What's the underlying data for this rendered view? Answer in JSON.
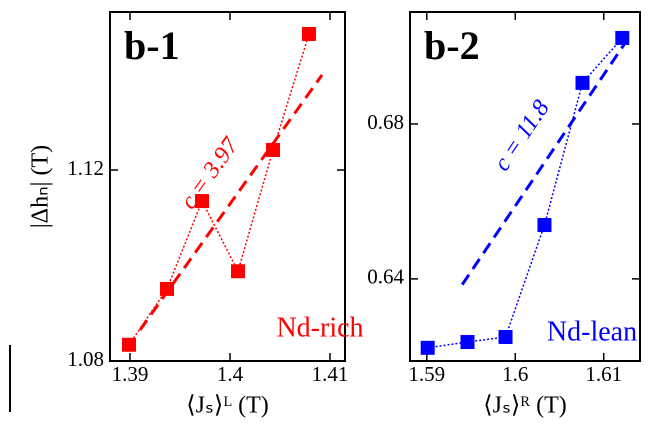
{
  "chart_data": [
    {
      "type": "scatter-line",
      "panel_label": "b-1",
      "ylabel": "|Δhₙ| (T)",
      "xlabel": "⟨Jₛ⟩ᴸ (T)",
      "xlim": [
        1.388,
        1.4115
      ],
      "xticks": [
        1.39,
        1.4,
        1.41
      ],
      "ylim": [
        1.08,
        1.1531
      ],
      "yticks": [
        1.08,
        1.12
      ],
      "series": [
        {
          "name": "Nd-rich",
          "color": "#ff0000",
          "x": [
            1.3899,
            1.3937,
            1.3972,
            1.4008,
            1.4043,
            1.4079
          ],
          "values": [
            1.0834,
            1.0951,
            1.1135,
            1.0988,
            1.1242,
            1.1485
          ]
        }
      ],
      "fit": {
        "label": "c = 3.97",
        "x": [
          1.391,
          1.4092
        ],
        "values": [
          1.0865,
          1.1399
        ]
      }
    },
    {
      "type": "scatter-line",
      "panel_label": "b-2",
      "xlabel": "⟨Jₛ⟩ᴿ (T)",
      "xlim": [
        1.5881,
        1.6141
      ],
      "xticks": [
        1.59,
        1.6,
        1.61
      ],
      "ylim": [
        0.6188,
        0.7089
      ],
      "yticks": [
        0.64,
        0.68
      ],
      "series": [
        {
          "name": "Nd-lean",
          "color": "#0000ff",
          "x": [
            1.5901,
            1.5946,
            1.5989,
            1.6033,
            1.6076,
            1.6121
          ],
          "values": [
            0.6222,
            0.6237,
            0.625,
            0.6539,
            0.6906,
            0.7022
          ]
        }
      ],
      "fit": {
        "label": "c = 11.8",
        "x": [
          1.594,
          1.6123
        ],
        "values": [
          0.6385,
          0.7005
        ]
      }
    }
  ]
}
